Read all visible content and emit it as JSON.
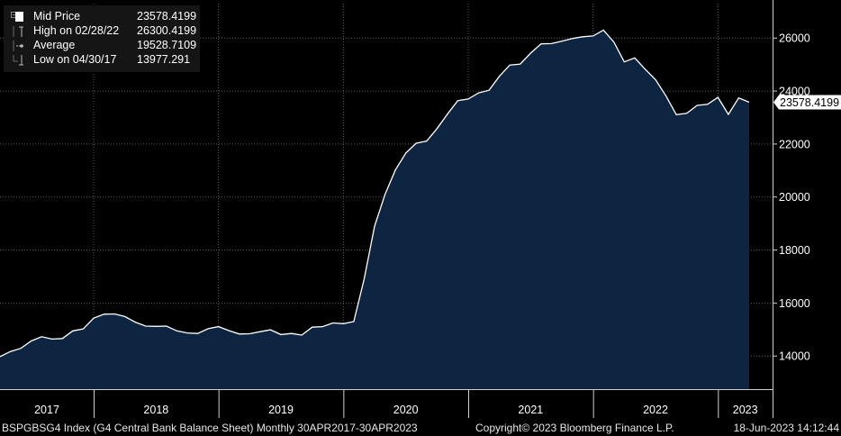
{
  "legend": {
    "rows": [
      {
        "label": "Mid Price",
        "value": "23578.4199",
        "icon": "filled-square-icon"
      },
      {
        "label": "High on 02/28/22",
        "value": "26300.4199",
        "icon": "high-marker-icon"
      },
      {
        "label": "Average",
        "value": "19528.7109",
        "icon": "average-marker-icon"
      },
      {
        "label": "Low on 04/30/17",
        "value": "13977.291",
        "icon": "low-marker-icon"
      }
    ]
  },
  "last_price_label": "23578.4199",
  "footer": {
    "ticker": "BSPGBSG4 Index (G4 Central Bank Balance Sheet)  Monthly 30APR2017-30APR2023",
    "copyright": "Copyright© 2023 Bloomberg Finance L.P.",
    "timestamp": "18-Jun-2023 14:12:44"
  },
  "colors": {
    "background": "#000000",
    "area_fill": "#0d2540",
    "line": "#ffffff",
    "grid": "#5a5a5a",
    "legend_bg": "#151515",
    "text": "#ffffff"
  },
  "chart_data": {
    "type": "area",
    "title": "",
    "xlabel": "",
    "ylabel": "",
    "x_ticks": [
      "2017",
      "2018",
      "2019",
      "2020",
      "2021",
      "2022",
      "2023"
    ],
    "y_ticks": [
      14000,
      16000,
      18000,
      20000,
      22000,
      24000,
      26000
    ],
    "ylim": [
      12750,
      27300
    ],
    "grid": true,
    "legend_position": "top-left",
    "series": [
      {
        "name": "Mid Price",
        "x": [
          "2017-04",
          "2017-05",
          "2017-06",
          "2017-07",
          "2017-08",
          "2017-09",
          "2017-10",
          "2017-11",
          "2017-12",
          "2018-01",
          "2018-02",
          "2018-03",
          "2018-04",
          "2018-05",
          "2018-06",
          "2018-07",
          "2018-08",
          "2018-09",
          "2018-10",
          "2018-11",
          "2018-12",
          "2019-01",
          "2019-02",
          "2019-03",
          "2019-04",
          "2019-05",
          "2019-06",
          "2019-07",
          "2019-08",
          "2019-09",
          "2019-10",
          "2019-11",
          "2019-12",
          "2020-01",
          "2020-02",
          "2020-03",
          "2020-04",
          "2020-05",
          "2020-06",
          "2020-07",
          "2020-08",
          "2020-09",
          "2020-10",
          "2020-11",
          "2020-12",
          "2021-01",
          "2021-02",
          "2021-03",
          "2021-04",
          "2021-05",
          "2021-06",
          "2021-07",
          "2021-08",
          "2021-09",
          "2021-10",
          "2021-11",
          "2021-12",
          "2022-01",
          "2022-02",
          "2022-03",
          "2022-04",
          "2022-05",
          "2022-06",
          "2022-07",
          "2022-08",
          "2022-09",
          "2022-10",
          "2022-11",
          "2022-12",
          "2023-01",
          "2023-02",
          "2023-03",
          "2023-04"
        ],
        "values": [
          13977,
          14170,
          14290,
          14570,
          14730,
          14640,
          14660,
          14950,
          15020,
          15430,
          15580,
          15590,
          15490,
          15280,
          15130,
          15120,
          15130,
          14950,
          14870,
          14850,
          15030,
          15110,
          14960,
          14830,
          14840,
          14920,
          14990,
          14810,
          14850,
          14790,
          15090,
          15110,
          15250,
          15220,
          15300,
          16900,
          18900,
          20100,
          21020,
          21660,
          22030,
          22110,
          22580,
          23130,
          23640,
          23700,
          23930,
          24030,
          24560,
          24980,
          25020,
          25430,
          25780,
          25790,
          25880,
          25980,
          26050,
          26080,
          26300,
          25850,
          25100,
          25250,
          24830,
          24430,
          23820,
          23110,
          23160,
          23460,
          23500,
          23760,
          23120,
          23740,
          23578
        ]
      }
    ]
  }
}
